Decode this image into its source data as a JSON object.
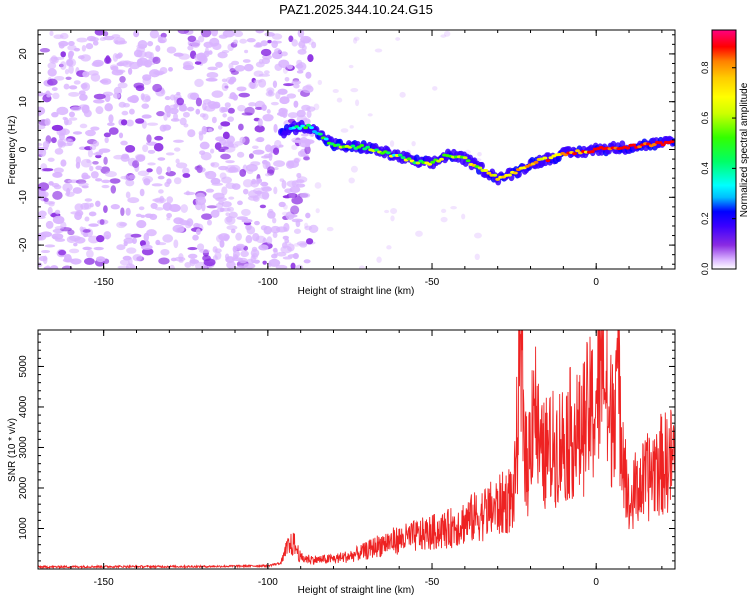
{
  "title": "PAZ1.2025.344.10.24.G15",
  "chart_data": [
    {
      "type": "heatmap",
      "name": "spectrogram",
      "xlabel": "Height of straight line (km)",
      "ylabel": "Frequency (Hz)",
      "xlim": [
        -170,
        24
      ],
      "ylim": [
        -25,
        25
      ],
      "xticks": [
        -150,
        -100,
        -50,
        0
      ],
      "xtick_labels": [
        "-150",
        "-100",
        "-50",
        "0"
      ],
      "yticks": [
        -20,
        -10,
        0,
        10,
        20
      ],
      "ytick_labels": [
        "-20",
        "-10",
        "0",
        "10",
        "20"
      ],
      "colorbar": {
        "label": "Normalized spectral amplitude",
        "range": [
          0,
          0.95
        ],
        "ticks": [
          0,
          0.2,
          0.4,
          0.6,
          0.8
        ],
        "tick_labels": [
          "0.0",
          "0.2",
          "0.4",
          "0.6",
          "0.8"
        ],
        "colormap": [
          "#ffffff",
          "#d9b3ff",
          "#8a2be2",
          "#3a00ff",
          "#0000ff",
          "#00bfff",
          "#00ffff",
          "#00ff66",
          "#33ff00",
          "#ccff00",
          "#ffff00",
          "#ffcc00",
          "#ff8000",
          "#ff0000",
          "#ff0080"
        ]
      },
      "signal_track": {
        "heights_km": [
          -96,
          -92,
          -88,
          -84,
          -80,
          -75,
          -70,
          -65,
          -60,
          -55,
          -50,
          -45,
          -40,
          -35,
          -30,
          -25,
          -20,
          -15,
          -10,
          -5,
          0,
          5,
          10,
          15,
          20,
          24
        ],
        "frequency_hz": [
          3.5,
          4.5,
          5,
          3,
          1,
          0.5,
          0.5,
          -0.5,
          -1.5,
          -2.5,
          -3,
          -1,
          -2,
          -4,
          -6,
          -5,
          -3,
          -2,
          -1,
          -0.5,
          0,
          0.3,
          0.5,
          1,
          1.3,
          1.5
        ]
      },
      "noise_region_km": [
        -170,
        -96
      ]
    },
    {
      "type": "line",
      "name": "snr",
      "xlabel": "Height of straight line (km)",
      "ylabel": "SNR (10 * v/v)",
      "xlim": [
        -170,
        24
      ],
      "ylim": [
        0,
        5900
      ],
      "xticks": [
        -150,
        -100,
        -50,
        0
      ],
      "xtick_labels": [
        "-150",
        "-100",
        "-50",
        "0"
      ],
      "yticks": [
        1000,
        2000,
        3000,
        4000,
        5000
      ],
      "ytick_labels": [
        "1000",
        "2000",
        "3000",
        "4000",
        "5000"
      ],
      "line_color": "#ee2222",
      "series": [
        {
          "name": "SNR",
          "x": [
            -170,
            -150,
            -120,
            -100,
            -96,
            -94,
            -92,
            -90,
            -85,
            -80,
            -75,
            -70,
            -65,
            -60,
            -55,
            -50,
            -45,
            -40,
            -35,
            -30,
            -25,
            -23,
            -21,
            -19,
            -17,
            -15,
            -13,
            -10,
            -7,
            -5,
            -3,
            0,
            2,
            4,
            6,
            8,
            10,
            12,
            15,
            18,
            21,
            24
          ],
          "y": [
            50,
            60,
            60,
            80,
            150,
            600,
            700,
            300,
            250,
            280,
            350,
            500,
            700,
            800,
            900,
            1000,
            1100,
            1300,
            1500,
            1700,
            2000,
            5800,
            2500,
            4900,
            3000,
            3200,
            3300,
            3500,
            3800,
            3600,
            4200,
            4400,
            5900,
            3700,
            5400,
            3800,
            1600,
            2200,
            2400,
            2800,
            2900,
            3100
          ]
        }
      ]
    }
  ]
}
